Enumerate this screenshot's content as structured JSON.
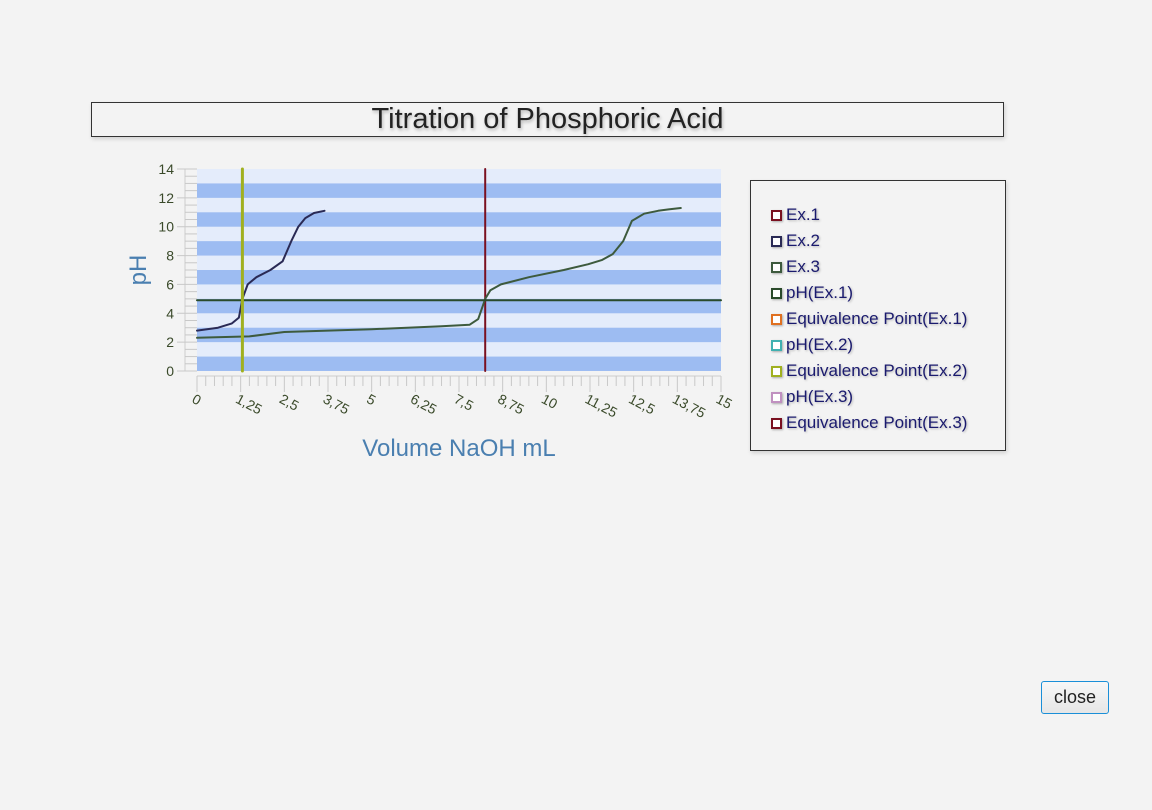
{
  "chart_data": {
    "type": "line",
    "title": "Titration of Phosphoric Acid",
    "xlabel": "Volume NaOH mL",
    "ylabel": "pH",
    "xlim": [
      0,
      15
    ],
    "ylim": [
      0,
      14
    ],
    "x_ticks": [
      "0",
      "1,25",
      "2,5",
      "3,75",
      "5",
      "6,25",
      "7,5",
      "8,75",
      "10",
      "11,25",
      "12,5",
      "13,75",
      "15"
    ],
    "x_tick_values": [
      0,
      1.25,
      2.5,
      3.75,
      5,
      6.25,
      7.5,
      8.75,
      10,
      11.25,
      12.5,
      13.75,
      15
    ],
    "y_ticks": [
      0,
      2,
      4,
      6,
      8,
      10,
      12,
      14
    ],
    "legend_position": "right",
    "series": [
      {
        "name": "Ex.1",
        "color": "#7a1020",
        "kind": "vertical",
        "points": [
          [
            8.25,
            0
          ],
          [
            8.25,
            14
          ]
        ]
      },
      {
        "name": "Ex.2",
        "color": "#2a2a55",
        "kind": "line",
        "points": [
          [
            0,
            2.8
          ],
          [
            0.6,
            3.0
          ],
          [
            1.0,
            3.3
          ],
          [
            1.2,
            3.7
          ],
          [
            1.3,
            5.0
          ],
          [
            1.45,
            6.0
          ],
          [
            1.7,
            6.5
          ],
          [
            2.1,
            7.0
          ],
          [
            2.45,
            7.6
          ],
          [
            2.7,
            9.0
          ],
          [
            2.9,
            10.0
          ],
          [
            3.1,
            10.6
          ],
          [
            3.35,
            10.95
          ],
          [
            3.65,
            11.1
          ]
        ]
      },
      {
        "name": "Ex.3",
        "color": "#3d5a3d",
        "kind": "line",
        "points": [
          [
            0,
            2.3
          ],
          [
            1.5,
            2.4
          ],
          [
            2.5,
            2.7
          ],
          [
            5,
            2.9
          ],
          [
            7.0,
            3.1
          ],
          [
            7.8,
            3.2
          ],
          [
            8.05,
            3.6
          ],
          [
            8.25,
            5.0
          ],
          [
            8.4,
            5.6
          ],
          [
            8.7,
            6.0
          ],
          [
            9.5,
            6.5
          ],
          [
            10.5,
            7.0
          ],
          [
            11.2,
            7.4
          ],
          [
            11.6,
            7.7
          ],
          [
            11.9,
            8.1
          ],
          [
            12.2,
            9.0
          ],
          [
            12.45,
            10.4
          ],
          [
            12.8,
            10.9
          ],
          [
            13.2,
            11.1
          ],
          [
            13.5,
            11.2
          ],
          [
            13.85,
            11.3
          ]
        ]
      },
      {
        "name": "pH(Ex.1)",
        "color": "#2a4a2a",
        "kind": "horizontal",
        "points": [
          [
            0,
            4.9
          ],
          [
            15,
            4.9
          ]
        ]
      },
      {
        "name": "Equivalence Point(Ex.1)",
        "color": "#e07020",
        "kind": "none",
        "points": []
      },
      {
        "name": "pH(Ex.2)",
        "color": "#40b0b0",
        "kind": "none",
        "points": []
      },
      {
        "name": "Equivalence Point(Ex.2)",
        "color": "#a0b020",
        "kind": "vertical",
        "points": [
          [
            1.3,
            0
          ],
          [
            1.3,
            14
          ]
        ]
      },
      {
        "name": "pH(Ex.3)",
        "color": "#c090c0",
        "kind": "none",
        "points": []
      },
      {
        "name": "Equivalence Point(Ex.3)",
        "color": "#7a1020",
        "kind": "none",
        "points": []
      }
    ]
  },
  "ui": {
    "close_label": "close"
  }
}
